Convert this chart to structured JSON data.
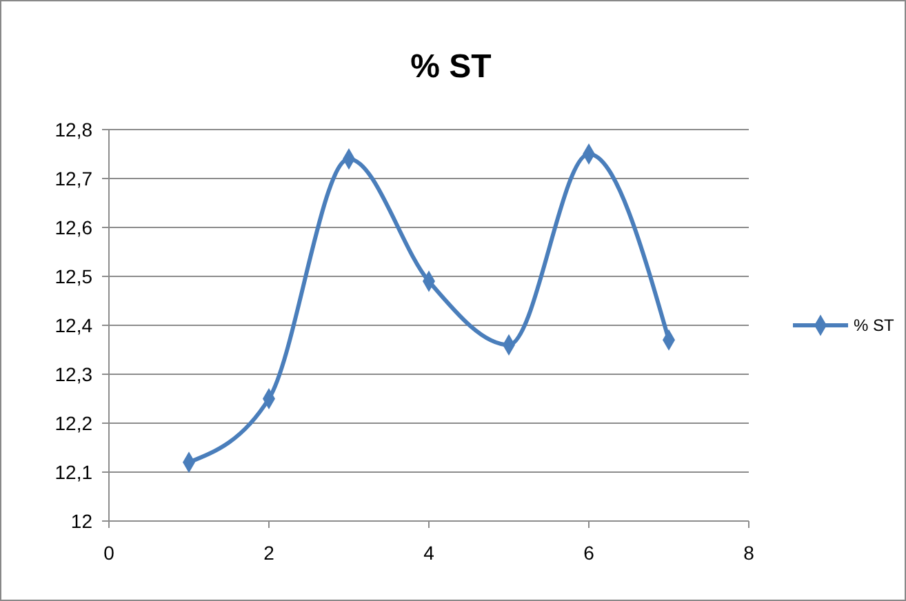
{
  "chart_data": {
    "type": "line",
    "title": "% ST",
    "x": [
      1,
      2,
      3,
      4,
      5,
      6,
      7
    ],
    "series": [
      {
        "name": "% ST",
        "color": "#4a7ebb",
        "values": [
          12.12,
          12.25,
          12.74,
          12.49,
          12.36,
          12.75,
          12.37
        ]
      }
    ],
    "xlim": [
      0,
      8
    ],
    "xticks": [
      0,
      2,
      4,
      6,
      8
    ],
    "ylim": [
      12,
      12.8
    ],
    "yticks": [
      12,
      {
        "value": 12.1,
        "label": "12,1"
      },
      {
        "value": 12.2,
        "label": "12,2"
      },
      {
        "value": 12.3,
        "label": "12,3"
      },
      {
        "value": 12.4,
        "label": "12,4"
      },
      {
        "value": 12.5,
        "label": "12,5"
      },
      {
        "value": 12.6,
        "label": "12,6"
      },
      {
        "value": 12.7,
        "label": "12,7"
      },
      {
        "value": 12.8,
        "label": "12,8"
      }
    ],
    "grid": "y",
    "legend": "right",
    "marker": "diamond",
    "line_style": "solid"
  }
}
